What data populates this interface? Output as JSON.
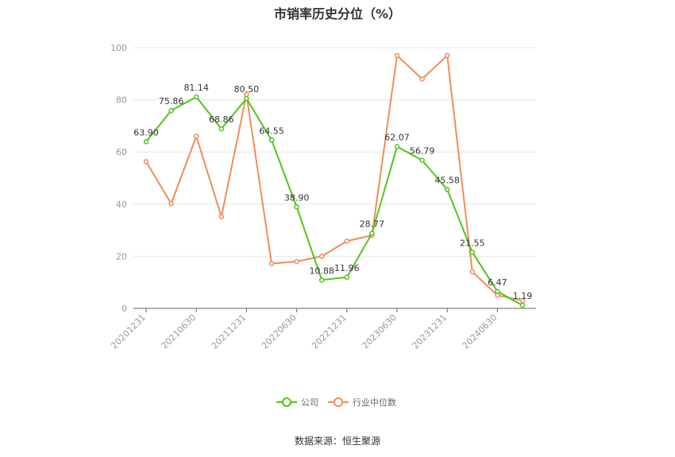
{
  "chart_data": {
    "type": "line",
    "title": "市销率历史分位（%）",
    "x": [
      "20201231",
      "20210331",
      "20210630",
      "20210930",
      "20211231",
      "20220331",
      "20220630",
      "20220930",
      "20221231",
      "20230331",
      "20230630",
      "20230930",
      "20231231",
      "20240331",
      "20240630",
      "20240930"
    ],
    "xticks": [
      "20201231",
      "20210630",
      "20211231",
      "20220630",
      "20221231",
      "20230630",
      "20231231",
      "20240630"
    ],
    "ylim": [
      0,
      100
    ],
    "yticks": [
      0,
      20,
      40,
      60,
      80,
      100
    ],
    "grid": true,
    "legend_position": "bottom",
    "series": [
      {
        "name": "公司",
        "color": "#52c41a",
        "values": [
          63.9,
          75.86,
          81.14,
          68.86,
          80.5,
          64.55,
          38.9,
          10.88,
          11.96,
          28.77,
          62.07,
          56.79,
          45.58,
          21.55,
          6.47,
          1.19
        ],
        "labels": [
          "63.90",
          "75.86",
          "81.14",
          "68.86",
          "80.50",
          "64.55",
          "38.90",
          "10.88",
          "11.96",
          "28.77",
          "62.07",
          "56.79",
          "45.58",
          "21.55",
          "6.47",
          "1.19"
        ]
      },
      {
        "name": "行业中位数",
        "color": "#f08c5a",
        "values": [
          56.3,
          40.2,
          66.0,
          35.2,
          82.0,
          17.2,
          18.0,
          20.0,
          25.8,
          28.0,
          97.0,
          88.0,
          97.0,
          14.0,
          5.0,
          3.0
        ]
      }
    ]
  },
  "source_text": "数据来源：恒生聚源"
}
